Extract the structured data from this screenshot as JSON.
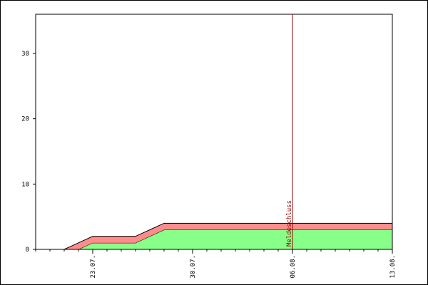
{
  "chart_data": {
    "type": "stacked-area",
    "categories": [
      null,
      null,
      null,
      null,
      "23.07.",
      null,
      null,
      null,
      null,
      null,
      null,
      "30.07.",
      null,
      null,
      null,
      null,
      null,
      null,
      "06.08.",
      null,
      null,
      null,
      null,
      null,
      null,
      "13.08."
    ],
    "series": [
      {
        "color": "#88ff88",
        "values": [
          0,
          0,
          0,
          0,
          1,
          1,
          1,
          1,
          2,
          3,
          3,
          3,
          3,
          3,
          3,
          3,
          3,
          3,
          3,
          3,
          3,
          3,
          3,
          3,
          3,
          3
        ]
      },
      {
        "color": "#ff8c8c",
        "values": [
          0,
          0,
          0,
          1,
          1,
          1,
          1,
          1,
          1,
          1,
          1,
          1,
          1,
          1,
          1,
          1,
          1,
          1,
          1,
          1,
          1,
          1,
          1,
          1,
          1,
          1
        ]
      }
    ],
    "ylim": [
      0,
      36
    ],
    "yticks": [
      0,
      10,
      20,
      30
    ],
    "annotation": {
      "text": "Meldeschluss",
      "x": "06.08.",
      "color": "#8b0000"
    }
  }
}
